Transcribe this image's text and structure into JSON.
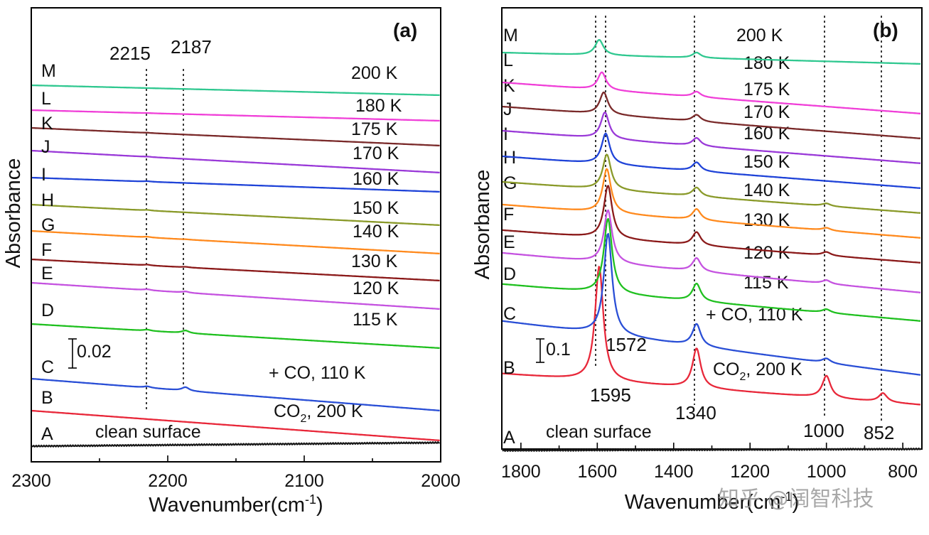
{
  "chart_data": [
    {
      "panel_label": "(a)",
      "type": "line",
      "xlabel": "Wavenumber(cm",
      "xlabel_sup": "-1",
      "xlabel_end": ")",
      "ylabel": "Absorbance",
      "xlim": [
        2300,
        2000
      ],
      "xticks": [
        "2300",
        "2200",
        "2100",
        "2000"
      ],
      "reference_peaks": [
        {
          "label": "2215",
          "x": 2215
        },
        {
          "label": "2187",
          "x": 2187
        }
      ],
      "scale_bar": "0.02",
      "series": [
        {
          "name": "A",
          "condition": "clean surface",
          "color": "#1a1a1a",
          "peaks": []
        },
        {
          "name": "B",
          "condition": "CO",
          "condition_sub": "2",
          "condition_end": ", 200 K",
          "color": "#e8283a",
          "peaks": []
        },
        {
          "name": "C",
          "condition": "+ CO, 110 K",
          "color": "#2a4fd6",
          "peaks": [
            {
              "x": 2215,
              "h": 0.017
            },
            {
              "x": 2187,
              "h": 0.044
            }
          ]
        },
        {
          "name": "D",
          "condition": "115 K",
          "color": "#20c020",
          "peaks": [
            {
              "x": 2215,
              "h": 0.015
            },
            {
              "x": 2187,
              "h": 0.032
            }
          ]
        },
        {
          "name": "E",
          "condition": "120 K",
          "color": "#c553e0",
          "peaks": [
            {
              "x": 2215,
              "h": 0.012
            },
            {
              "x": 2187,
              "h": 0.015
            }
          ]
        },
        {
          "name": "F",
          "condition": "130 K",
          "color": "#8b1a1a",
          "peaks": [
            {
              "x": 2215,
              "h": 0.009
            },
            {
              "x": 2187,
              "h": 0.007
            }
          ]
        },
        {
          "name": "G",
          "condition": "140 K",
          "color": "#ff8a1e",
          "peaks": [
            {
              "x": 2215,
              "h": 0.008
            },
            {
              "x": 2187,
              "h": 0.003
            }
          ]
        },
        {
          "name": "H",
          "condition": "150 K",
          "color": "#8a9a2a",
          "peaks": [
            {
              "x": 2215,
              "h": 0.007
            }
          ]
        },
        {
          "name": "I",
          "condition": "160 K",
          "color": "#2044d8",
          "peaks": [
            {
              "x": 2215,
              "h": 0.006
            }
          ]
        },
        {
          "name": "J",
          "condition": "170 K",
          "color": "#9a3ad8",
          "peaks": [
            {
              "x": 2215,
              "h": 0.004
            }
          ]
        },
        {
          "name": "K",
          "condition": "175 K",
          "color": "#7a2a2a",
          "peaks": [
            {
              "x": 2215,
              "h": 0.003
            }
          ]
        },
        {
          "name": "L",
          "condition": "180 K",
          "color": "#f040d8",
          "peaks": [
            {
              "x": 2215,
              "h": 0.002
            }
          ]
        },
        {
          "name": "M",
          "condition": "200 K",
          "color": "#30c890",
          "peaks": []
        }
      ]
    },
    {
      "panel_label": "(b)",
      "type": "line",
      "xlabel": "Wavenumber(cm",
      "xlabel_sup": "-1",
      "xlabel_end": ")",
      "ylabel": "Absorbance",
      "xlim": [
        1850,
        750
      ],
      "xticks": [
        "1800",
        "1600",
        "1400",
        "1200",
        "1000",
        "800"
      ],
      "reference_peaks": [
        {
          "label": "1595",
          "x": 1595
        },
        {
          "label": "1572",
          "x": 1572
        },
        {
          "label": "1340",
          "x": 1340
        },
        {
          "label": "1000",
          "x": 1000
        },
        {
          "label": "852",
          "x": 852
        }
      ],
      "scale_bar": "0.1",
      "series": [
        {
          "name": "A",
          "condition": "clean surface",
          "color": "#1a1a1a",
          "peaks": []
        },
        {
          "name": "B",
          "condition": "CO",
          "condition_sub": "2",
          "condition_end": ", 200 K",
          "color": "#e8283a",
          "peaks": [
            {
              "x": 1595,
              "h": 0.26
            },
            {
              "x": 1340,
              "h": 0.09
            },
            {
              "x": 1000,
              "h": 0.05
            },
            {
              "x": 852,
              "h": 0.02
            }
          ]
        },
        {
          "name": "C",
          "condition": "+ CO, 110 K",
          "color": "#2a4fd6",
          "peaks": [
            {
              "x": 1572,
              "h": 0.23
            },
            {
              "x": 1340,
              "h": 0.05
            },
            {
              "x": 1000,
              "h": 0.01
            }
          ]
        },
        {
          "name": "D",
          "condition": "115 K",
          "color": "#20c020",
          "peaks": [
            {
              "x": 1572,
              "h": 0.17
            },
            {
              "x": 1340,
              "h": 0.04
            },
            {
              "x": 1000,
              "h": 0.008
            }
          ]
        },
        {
          "name": "E",
          "condition": "120 K",
          "color": "#c553e0",
          "peaks": [
            {
              "x": 1572,
              "h": 0.12
            },
            {
              "x": 1340,
              "h": 0.03
            },
            {
              "x": 1000,
              "h": 0.008
            }
          ]
        },
        {
          "name": "F",
          "condition": "130 K",
          "color": "#8b1a1a",
          "peaks": [
            {
              "x": 1572,
              "h": 0.12
            },
            {
              "x": 1340,
              "h": 0.03
            },
            {
              "x": 1000,
              "h": 0.008
            }
          ]
        },
        {
          "name": "G",
          "condition": "140 K",
          "color": "#ff8a1e",
          "peaks": [
            {
              "x": 1575,
              "h": 0.1
            },
            {
              "x": 1340,
              "h": 0.025
            },
            {
              "x": 1000,
              "h": 0.006
            }
          ]
        },
        {
          "name": "H",
          "condition": "150 K",
          "color": "#8a9a2a",
          "peaks": [
            {
              "x": 1575,
              "h": 0.08
            },
            {
              "x": 1340,
              "h": 0.02
            },
            {
              "x": 1000,
              "h": 0.006
            }
          ]
        },
        {
          "name": "I",
          "condition": "160 K",
          "color": "#2044d8",
          "peaks": [
            {
              "x": 1578,
              "h": 0.07
            },
            {
              "x": 1340,
              "h": 0.02
            }
          ]
        },
        {
          "name": "J",
          "condition": "170 K",
          "color": "#9a3ad8",
          "peaks": [
            {
              "x": 1580,
              "h": 0.06
            },
            {
              "x": 1340,
              "h": 0.018
            }
          ]
        },
        {
          "name": "K",
          "condition": "175 K",
          "color": "#7a2a2a",
          "peaks": [
            {
              "x": 1583,
              "h": 0.05
            },
            {
              "x": 1340,
              "h": 0.015
            }
          ]
        },
        {
          "name": "L",
          "condition": "180 K",
          "color": "#f040d8",
          "peaks": [
            {
              "x": 1588,
              "h": 0.04
            },
            {
              "x": 1340,
              "h": 0.012
            }
          ]
        },
        {
          "name": "M",
          "condition": "200 K",
          "color": "#30c890",
          "peaks": [
            {
              "x": 1595,
              "h": 0.035
            },
            {
              "x": 1340,
              "h": 0.012
            }
          ]
        }
      ]
    }
  ],
  "watermark": "知乎 @阔智科技"
}
